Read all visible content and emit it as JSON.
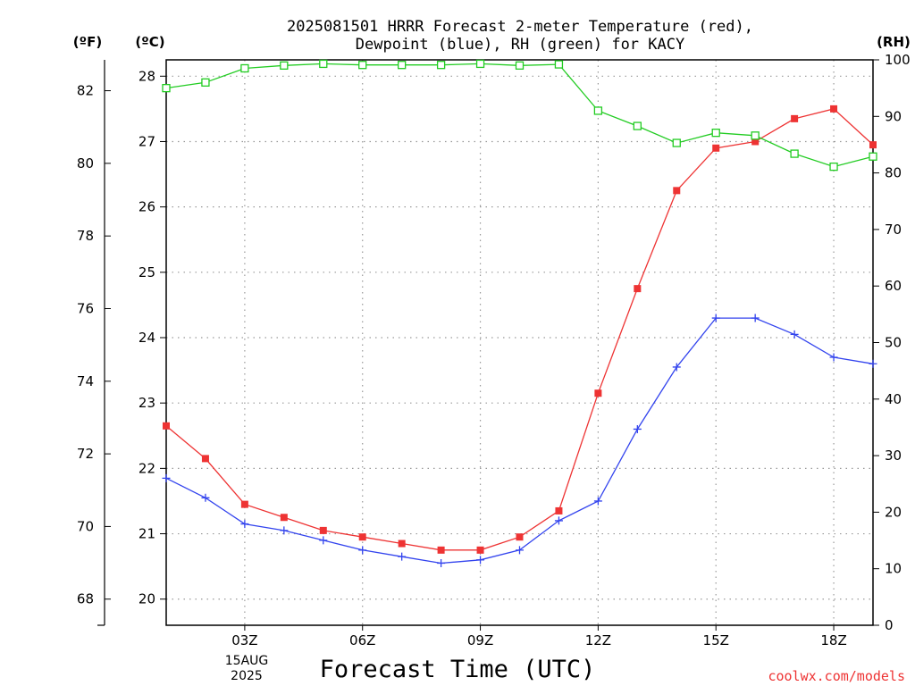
{
  "chart_data": {
    "type": "line",
    "title_line1": "2025081501 HRRR Forecast 2-meter Temperature (red),",
    "title_line2": "Dewpoint (blue), RH (green) for KACY",
    "xlabel": "Forecast Time (UTC)",
    "unit_f": "(ºF)",
    "unit_c": "(ºC)",
    "unit_rh": "(RH)",
    "credit": "coolwx.com/models",
    "x_date_day": "15AUG",
    "x_date_year": "2025",
    "x_ticks": [
      "03Z",
      "06Z",
      "09Z",
      "12Z",
      "15Z",
      "18Z"
    ],
    "x_tick_hours": [
      3,
      6,
      9,
      12,
      15,
      18
    ],
    "xlim_hours": [
      1,
      19
    ],
    "x_hours": [
      1,
      2,
      3,
      4,
      5,
      6,
      7,
      8,
      9,
      10,
      11,
      12,
      13,
      14,
      15,
      16,
      17,
      18,
      19
    ],
    "ylim_c": [
      19.6,
      28.25
    ],
    "y_ticks_c": [
      "20",
      "21",
      "22",
      "23",
      "24",
      "25",
      "26",
      "27",
      "28"
    ],
    "y_ticks_f": [
      "68",
      "70",
      "72",
      "74",
      "76",
      "78",
      "80",
      "82"
    ],
    "ylim_rh": [
      0,
      100
    ],
    "y_ticks_rh": [
      "0",
      "10",
      "20",
      "30",
      "40",
      "50",
      "60",
      "70",
      "80",
      "90",
      "100"
    ],
    "grid": true,
    "colors": {
      "temperature": "#ee3333",
      "dewpoint": "#3344ee",
      "rh": "#22cc22",
      "credit": "#ee3333",
      "grid": "#999999"
    },
    "series": [
      {
        "name": "Temperature",
        "axis": "C",
        "marker": "square-filled",
        "values": [
          22.65,
          22.15,
          21.45,
          21.25,
          21.05,
          20.95,
          20.85,
          20.75,
          20.75,
          20.95,
          21.35,
          23.15,
          24.75,
          26.25,
          26.9,
          27.0,
          27.35,
          27.5,
          26.95
        ]
      },
      {
        "name": "Dewpoint",
        "axis": "C",
        "marker": "plus",
        "values": [
          21.85,
          21.55,
          21.15,
          21.05,
          20.9,
          20.75,
          20.65,
          20.55,
          20.6,
          20.75,
          21.2,
          21.5,
          22.6,
          23.55,
          24.3,
          24.3,
          24.05,
          23.7,
          23.6
        ]
      },
      {
        "name": "RH",
        "axis": "RH",
        "marker": "square-open",
        "values": [
          95,
          96,
          98.5,
          99,
          99.3,
          99.1,
          99.1,
          99.1,
          99.3,
          99,
          99.2,
          91,
          88.3,
          85.3,
          87.1,
          86.6,
          83.4,
          81.1,
          82.9
        ]
      }
    ]
  }
}
